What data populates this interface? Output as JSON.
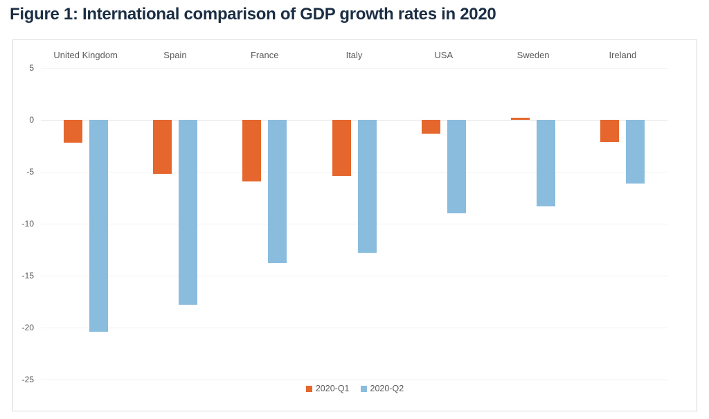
{
  "title": "Figure 1: International comparison of GDP growth rates in 2020",
  "chart_data": {
    "type": "bar",
    "title": "Figure 1: International comparison of GDP growth rates in 2020",
    "categories": [
      "United Kingdom",
      "Spain",
      "France",
      "Italy",
      "USA",
      "Sweden",
      "Ireland"
    ],
    "series": [
      {
        "name": "2020-Q1",
        "color": "#e5672d",
        "values": [
          -2.2,
          -5.2,
          -5.9,
          -5.4,
          -1.3,
          0.2,
          -2.1
        ]
      },
      {
        "name": "2020-Q2",
        "color": "#8abcdd",
        "values": [
          -20.4,
          -17.8,
          -13.8,
          -12.8,
          -9.0,
          -8.3,
          -6.1
        ]
      }
    ],
    "xlabel": "",
    "ylabel": "",
    "ylim": [
      -25,
      5
    ],
    "yticks": [
      5,
      0,
      -5,
      -10,
      -15,
      -20,
      -25
    ],
    "grid": true,
    "legend_position": "bottom"
  },
  "colors": {
    "title_text": "#1b2e44",
    "axis_text": "#595959",
    "gridline": "#f0f0f0",
    "zero_line": "#e2e2e2",
    "panel_border": "#d9d9d9",
    "background": "#ffffff"
  }
}
